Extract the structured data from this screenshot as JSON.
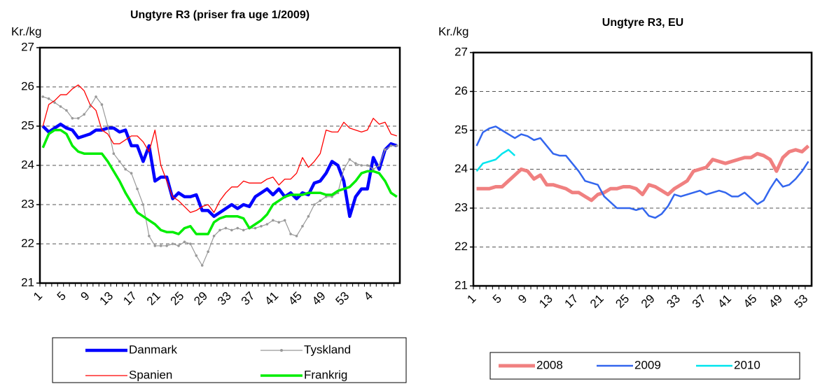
{
  "chart_data": [
    {
      "type": "line",
      "title": "Ungtyre R3 (priser fra uge 1/2009)",
      "y_label": "Kr./kg",
      "categories": [
        "1",
        null,
        null,
        null,
        "5",
        null,
        null,
        null,
        "9",
        null,
        null,
        null,
        "13",
        null,
        null,
        null,
        "17",
        null,
        null,
        null,
        "21",
        null,
        null,
        null,
        "25",
        null,
        null,
        null,
        "29",
        null,
        null,
        null,
        "33",
        null,
        null,
        null,
        "37",
        null,
        null,
        null,
        "41",
        null,
        null,
        null,
        "45",
        null,
        null,
        null,
        "49",
        null,
        null,
        null,
        "53",
        null,
        null,
        null,
        "4",
        null,
        null,
        null,
        null
      ],
      "ylim": [
        21,
        27
      ],
      "yticks": [
        21,
        22,
        23,
        24,
        25,
        26,
        27
      ],
      "grid": true,
      "series": [
        {
          "name": "Danmark",
          "color": "#0000ff",
          "values": [
            25.0,
            24.85,
            24.95,
            25.05,
            24.95,
            24.9,
            24.7,
            24.75,
            24.8,
            24.9,
            24.9,
            24.95,
            24.95,
            24.85,
            24.9,
            24.5,
            24.5,
            24.1,
            24.5,
            23.6,
            23.7,
            23.7,
            23.15,
            23.3,
            23.2,
            23.2,
            23.25,
            22.85,
            22.85,
            22.7,
            22.8,
            22.9,
            23.0,
            22.9,
            23.0,
            22.95,
            23.2,
            23.3,
            23.4,
            23.25,
            23.4,
            23.2,
            23.3,
            23.15,
            23.3,
            23.25,
            23.55,
            23.6,
            23.8,
            24.1,
            24.0,
            23.6,
            22.7,
            23.2,
            23.4,
            23.4,
            24.2,
            23.9,
            24.4,
            24.55,
            24.5
          ]
        },
        {
          "name": "Tyskland",
          "color": "#999999",
          "marker": true,
          "values": [
            25.75,
            25.7,
            25.6,
            25.5,
            25.4,
            25.2,
            25.2,
            25.3,
            25.5,
            25.75,
            25.55,
            25.0,
            24.3,
            24.1,
            23.9,
            23.8,
            23.4,
            23.0,
            22.2,
            21.95,
            21.95,
            21.95,
            22.0,
            21.95,
            22.05,
            22.0,
            21.7,
            21.45,
            21.8,
            22.2,
            22.35,
            22.4,
            22.35,
            22.4,
            22.35,
            22.4,
            22.4,
            22.45,
            22.5,
            22.6,
            22.55,
            22.6,
            22.25,
            22.2,
            22.45,
            22.7,
            23.0,
            23.1,
            23.2,
            23.2,
            23.3,
            23.9,
            24.15,
            24.05,
            24.0,
            24.0,
            23.9,
            24.0,
            24.4,
            24.5,
            24.5
          ]
        },
        {
          "name": "Spanien",
          "color": "#ff0000",
          "values": [
            25.0,
            25.55,
            25.65,
            25.8,
            25.8,
            25.95,
            26.05,
            25.9,
            25.55,
            25.4,
            24.9,
            24.8,
            24.55,
            24.55,
            24.65,
            24.75,
            24.75,
            24.6,
            24.35,
            24.9,
            24.0,
            23.6,
            23.2,
            23.1,
            22.95,
            22.8,
            22.85,
            22.95,
            23.0,
            22.8,
            23.1,
            23.3,
            23.45,
            23.45,
            23.6,
            23.55,
            23.55,
            23.55,
            23.65,
            23.7,
            23.5,
            23.65,
            23.65,
            23.8,
            24.2,
            23.95,
            24.1,
            24.3,
            24.9,
            24.85,
            24.85,
            25.1,
            24.95,
            24.9,
            24.85,
            24.9,
            25.2,
            25.05,
            25.1,
            24.8,
            24.75
          ]
        },
        {
          "name": "Frankrig",
          "color": "#00ee00",
          "values": [
            24.45,
            24.8,
            24.9,
            24.9,
            24.8,
            24.5,
            24.35,
            24.3,
            24.3,
            24.3,
            24.3,
            24.1,
            23.85,
            23.6,
            23.3,
            23.05,
            22.8,
            22.7,
            22.6,
            22.5,
            22.35,
            22.3,
            22.3,
            22.25,
            22.4,
            22.45,
            22.25,
            22.25,
            22.25,
            22.55,
            22.65,
            22.7,
            22.7,
            22.7,
            22.65,
            22.4,
            22.5,
            22.6,
            22.75,
            23.0,
            23.1,
            23.2,
            23.25,
            23.25,
            23.25,
            23.3,
            23.3,
            23.3,
            23.25,
            23.25,
            23.35,
            23.4,
            23.45,
            23.6,
            23.8,
            23.85,
            23.85,
            23.8,
            23.6,
            23.3,
            23.2
          ]
        }
      ]
    },
    {
      "type": "line",
      "title": "Ungtyre R3, EU",
      "y_label": "Kr./kg",
      "categories": [
        "1",
        null,
        null,
        null,
        "5",
        null,
        null,
        null,
        "9",
        null,
        null,
        null,
        "13",
        null,
        null,
        null,
        "17",
        null,
        null,
        null,
        "21",
        null,
        null,
        null,
        "25",
        null,
        null,
        null,
        "29",
        null,
        null,
        null,
        "33",
        null,
        null,
        null,
        "37",
        null,
        null,
        null,
        "41",
        null,
        null,
        null,
        "45",
        null,
        null,
        null,
        "49",
        null,
        null,
        null,
        "53"
      ],
      "ylim": [
        21,
        27
      ],
      "yticks": [
        21,
        22,
        23,
        24,
        25,
        26,
        27
      ],
      "grid": true,
      "series": [
        {
          "name": "2008",
          "color": "#f08080",
          "values": [
            23.5,
            23.5,
            23.5,
            23.55,
            23.55,
            23.7,
            23.85,
            24.0,
            23.95,
            23.75,
            23.85,
            23.6,
            23.6,
            23.55,
            23.5,
            23.4,
            23.4,
            23.3,
            23.2,
            23.35,
            23.4,
            23.5,
            23.5,
            23.55,
            23.55,
            23.5,
            23.35,
            23.6,
            23.55,
            23.45,
            23.35,
            23.5,
            23.6,
            23.7,
            23.95,
            24.0,
            24.05,
            24.25,
            24.2,
            24.15,
            24.2,
            24.25,
            24.3,
            24.3,
            24.4,
            24.35,
            24.25,
            23.95,
            24.3,
            24.45,
            24.5,
            24.45,
            24.6
          ]
        },
        {
          "name": "2009",
          "color": "#3366ee",
          "values": [
            24.6,
            24.95,
            25.05,
            25.1,
            25.0,
            24.9,
            24.8,
            24.9,
            24.85,
            24.75,
            24.8,
            24.6,
            24.4,
            24.35,
            24.35,
            24.15,
            23.95,
            23.7,
            23.65,
            23.6,
            23.3,
            23.15,
            23.0,
            23.0,
            23.0,
            22.95,
            23.0,
            22.8,
            22.75,
            22.85,
            23.05,
            23.35,
            23.3,
            23.35,
            23.4,
            23.45,
            23.35,
            23.4,
            23.45,
            23.4,
            23.3,
            23.3,
            23.4,
            23.25,
            23.1,
            23.2,
            23.5,
            23.75,
            23.55,
            23.6,
            23.75,
            23.95,
            24.2
          ]
        },
        {
          "name": "2010",
          "color": "#00e5ee",
          "values": [
            23.95,
            24.15,
            24.2,
            24.25,
            24.4,
            24.5,
            24.35,
            null,
            null,
            null,
            null,
            null,
            null,
            null,
            null,
            null,
            null,
            null,
            null,
            null,
            null,
            null,
            null,
            null,
            null,
            null,
            null,
            null,
            null,
            null,
            null,
            null,
            null,
            null,
            null,
            null,
            null,
            null,
            null,
            null,
            null,
            null,
            null,
            null,
            null,
            null,
            null,
            null,
            null,
            null,
            null,
            null,
            null
          ]
        }
      ]
    }
  ]
}
